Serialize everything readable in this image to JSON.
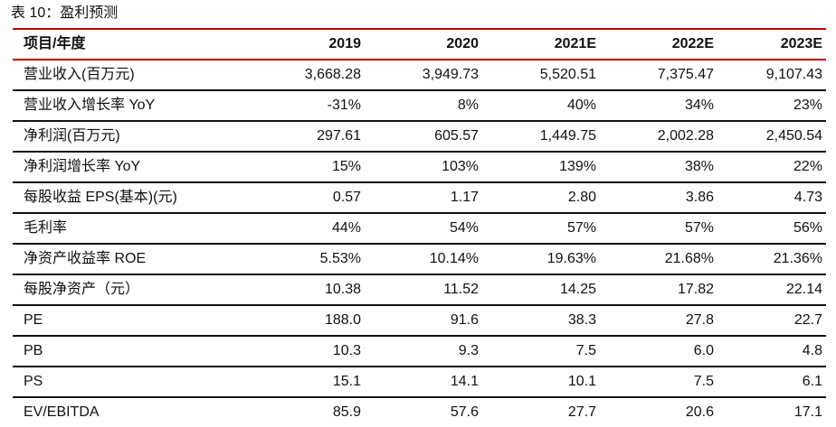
{
  "caption": "表 10：盈利预测",
  "table": {
    "header": [
      "项目/年度",
      "2019",
      "2020",
      "2021E",
      "2022E",
      "2023E"
    ],
    "rows": [
      {
        "label": "营业收入(百万元)",
        "values": [
          "3,668.28",
          "3,949.73",
          "5,520.51",
          "7,375.47",
          "9,107.43"
        ]
      },
      {
        "label": "营业收入增长率 YoY",
        "values": [
          "-31%",
          "8%",
          "40%",
          "34%",
          "23%"
        ]
      },
      {
        "label": "净利润(百万元)",
        "values": [
          "297.61",
          "605.57",
          "1,449.75",
          "2,002.28",
          "2,450.54"
        ]
      },
      {
        "label": "净利润增长率 YoY",
        "values": [
          "15%",
          "103%",
          "139%",
          "38%",
          "22%"
        ]
      },
      {
        "label": "每股收益 EPS(基本)(元)",
        "values": [
          "0.57",
          "1.17",
          "2.80",
          "3.86",
          "4.73"
        ]
      },
      {
        "label": "毛利率",
        "values": [
          "44%",
          "54%",
          "57%",
          "57%",
          "56%"
        ]
      },
      {
        "label": "净资产收益率 ROE",
        "values": [
          "5.53%",
          "10.14%",
          "19.63%",
          "21.68%",
          "21.36%"
        ]
      },
      {
        "label": "每股净资产（元）",
        "values": [
          "10.38",
          "11.52",
          "14.25",
          "17.82",
          "22.14"
        ]
      },
      {
        "label": "PE",
        "values": [
          "188.0",
          "91.6",
          "38.3",
          "27.8",
          "22.7"
        ]
      },
      {
        "label": "PB",
        "values": [
          "10.3",
          "9.3",
          "7.5",
          "6.0",
          "4.8"
        ]
      },
      {
        "label": "PS",
        "values": [
          "15.1",
          "14.1",
          "10.1",
          "7.5",
          "6.1"
        ]
      },
      {
        "label": "EV/EBITDA",
        "values": [
          "85.9",
          "57.6",
          "27.7",
          "20.6",
          "17.1"
        ]
      }
    ]
  },
  "colors": {
    "header_rule": "#c00000",
    "row_rule": "#111111"
  }
}
